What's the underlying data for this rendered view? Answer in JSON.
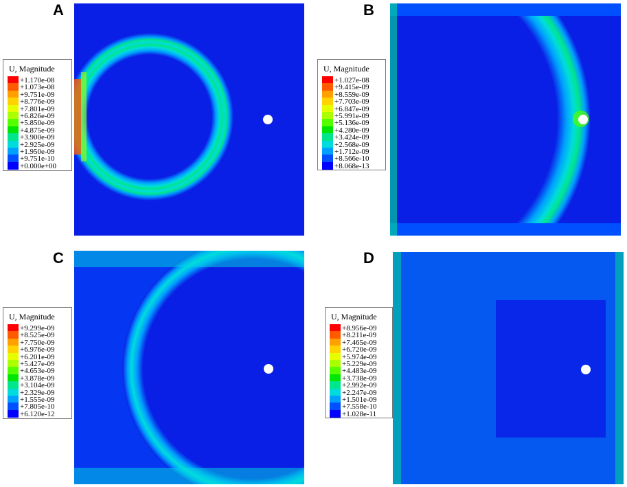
{
  "legend_title": "U, Magnitude",
  "colors": [
    "#ff0000",
    "#ff5a00",
    "#ffa000",
    "#ffd200",
    "#e6ff00",
    "#aaff00",
    "#55ff00",
    "#00e600",
    "#00e68c",
    "#00dcdc",
    "#00a0ff",
    "#0050ff",
    "#0000ff"
  ],
  "background_color": "#0a1fe6",
  "hole_color": "#ffffff",
  "panels": [
    {
      "letter": "A",
      "labels": [
        "+1.170e-08",
        "+1.073e-08",
        "+9.751e-09",
        "+8.776e-09",
        "+7.801e-09",
        "+6.826e-09",
        "+5.850e-09",
        "+4.875e-09",
        "+3.900e-09",
        "+2.925e-09",
        "+1.950e-09",
        "+9.751e-10",
        "+0.000e+00"
      ]
    },
    {
      "letter": "B",
      "labels": [
        "+1.027e-08",
        "+9.415e-09",
        "+8.559e-09",
        "+7.703e-09",
        "+6.847e-09",
        "+5.991e-09",
        "+5.136e-09",
        "+4.280e-09",
        "+3.424e-09",
        "+2.568e-09",
        "+1.712e-09",
        "+8.566e-10",
        "+8.068e-13"
      ]
    },
    {
      "letter": "C",
      "labels": [
        "+9.299e-09",
        "+8.525e-09",
        "+7.750e-09",
        "+6.976e-09",
        "+6.201e-09",
        "+5.427e-09",
        "+4.653e-09",
        "+3.878e-09",
        "+3.104e-09",
        "+2.329e-09",
        "+1.555e-09",
        "+7.805e-10",
        "+6.120e-12"
      ]
    },
    {
      "letter": "D",
      "labels": [
        "+8.956e-09",
        "+8.211e-09",
        "+7.465e-09",
        "+6.720e-09",
        "+5.974e-09",
        "+5.229e-09",
        "+4.483e-09",
        "+3.738e-09",
        "+2.992e-09",
        "+2.247e-09",
        "+1.501e-09",
        "+7.558e-10",
        "+1.028e-11"
      ]
    }
  ]
}
